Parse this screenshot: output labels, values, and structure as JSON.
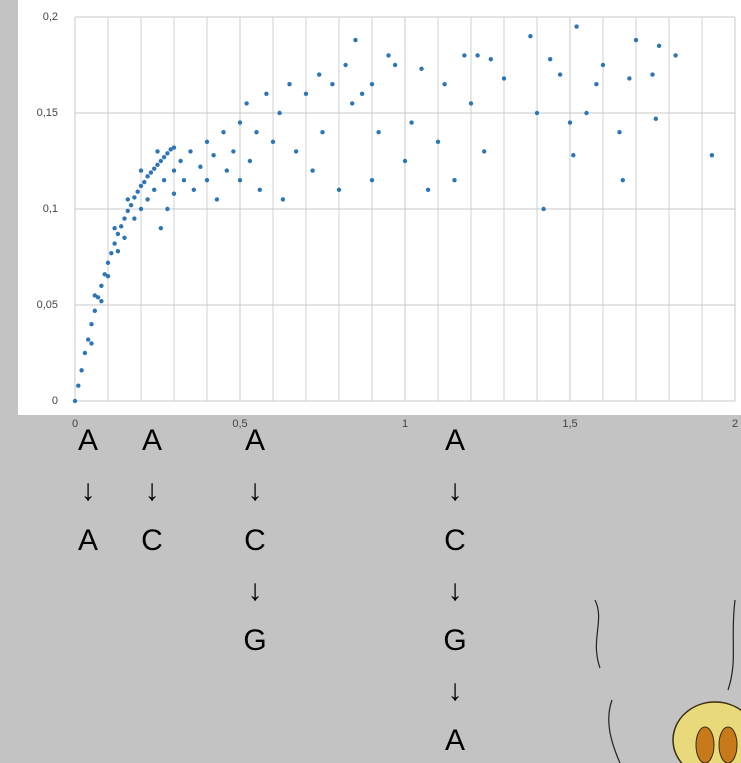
{
  "chart_data": {
    "type": "scatter",
    "x": [
      0,
      0.01,
      0.02,
      0.03,
      0.04,
      0.05,
      0.06,
      0.07,
      0.08,
      0.09,
      0.1,
      0.11,
      0.12,
      0.13,
      0.14,
      0.15,
      0.16,
      0.17,
      0.18,
      0.19,
      0.2,
      0.21,
      0.22,
      0.23,
      0.24,
      0.25,
      0.26,
      0.27,
      0.28,
      0.29,
      0.3,
      0.05,
      0.06,
      0.08,
      0.1,
      0.12,
      0.13,
      0.15,
      0.16,
      0.18,
      0.2,
      0.2,
      0.22,
      0.24,
      0.25,
      0.26,
      0.27,
      0.28,
      0.3,
      0.3,
      0.32,
      0.33,
      0.35,
      0.36,
      0.38,
      0.4,
      0.4,
      0.42,
      0.43,
      0.45,
      0.46,
      0.48,
      0.5,
      0.5,
      0.52,
      0.53,
      0.55,
      0.56,
      0.58,
      0.6,
      0.62,
      0.63,
      0.65,
      0.67,
      0.7,
      0.72,
      0.74,
      0.75,
      0.78,
      0.8,
      0.82,
      0.84,
      0.85,
      0.87,
      0.9,
      0.9,
      0.92,
      0.95,
      0.97,
      1.0,
      1.02,
      1.05,
      1.07,
      1.1,
      1.12,
      1.15,
      1.18,
      1.2,
      1.22,
      1.24,
      1.26,
      1.3,
      1.38,
      1.4,
      1.42,
      1.44,
      1.47,
      1.5,
      1.51,
      1.52,
      1.55,
      1.58,
      1.6,
      1.65,
      1.66,
      1.68,
      1.7,
      1.75,
      1.76,
      1.77,
      1.82,
      1.93
    ],
    "y": [
      0,
      0.008,
      0.016,
      0.025,
      0.032,
      0.04,
      0.047,
      0.054,
      0.06,
      0.066,
      0.072,
      0.077,
      0.082,
      0.087,
      0.091,
      0.095,
      0.099,
      0.102,
      0.106,
      0.109,
      0.112,
      0.114,
      0.117,
      0.119,
      0.121,
      0.123,
      0.125,
      0.127,
      0.129,
      0.131,
      0.132,
      0.03,
      0.055,
      0.052,
      0.065,
      0.09,
      0.078,
      0.085,
      0.105,
      0.095,
      0.1,
      0.12,
      0.105,
      0.11,
      0.13,
      0.09,
      0.115,
      0.1,
      0.12,
      0.108,
      0.125,
      0.115,
      0.13,
      0.11,
      0.122,
      0.135,
      0.115,
      0.128,
      0.105,
      0.14,
      0.12,
      0.13,
      0.145,
      0.115,
      0.155,
      0.125,
      0.14,
      0.11,
      0.16,
      0.135,
      0.15,
      0.105,
      0.165,
      0.13,
      0.16,
      0.12,
      0.17,
      0.14,
      0.165,
      0.11,
      0.175,
      0.155,
      0.188,
      0.16,
      0.165,
      0.115,
      0.14,
      0.18,
      0.175,
      0.125,
      0.145,
      0.173,
      0.11,
      0.135,
      0.165,
      0.115,
      0.18,
      0.155,
      0.18,
      0.13,
      0.178,
      0.168,
      0.19,
      0.15,
      0.1,
      0.178,
      0.17,
      0.145,
      0.128,
      0.195,
      0.15,
      0.165,
      0.175,
      0.14,
      0.115,
      0.168,
      0.188,
      0.17,
      0.147,
      0.185,
      0.18,
      0.128
    ],
    "color": "#2e75b6",
    "xlim": [
      0,
      2
    ],
    "xticks": [
      0,
      {
        "value": 0.5,
        "label": "0,5"
      },
      1,
      {
        "value": 1.5,
        "label": "1,5"
      },
      2
    ],
    "ylim": [
      0,
      0.2
    ],
    "yticks": [
      0,
      {
        "value": 0.05,
        "label": "0,05"
      },
      {
        "value": 0.1,
        "label": "0,1"
      },
      {
        "value": 0.15,
        "label": "0,15"
      },
      {
        "value": 0.2,
        "label": "0,2"
      }
    ],
    "grid": true,
    "minor_xgrid": 0.1,
    "annotations": [
      [
        "A",
        "↓",
        "A"
      ],
      [
        "A",
        "↓",
        "C"
      ],
      [
        "A",
        "↓",
        "C",
        "↓",
        "G"
      ],
      [
        "A",
        "↓",
        "C",
        "↓",
        "G",
        "↓",
        "A"
      ]
    ]
  }
}
